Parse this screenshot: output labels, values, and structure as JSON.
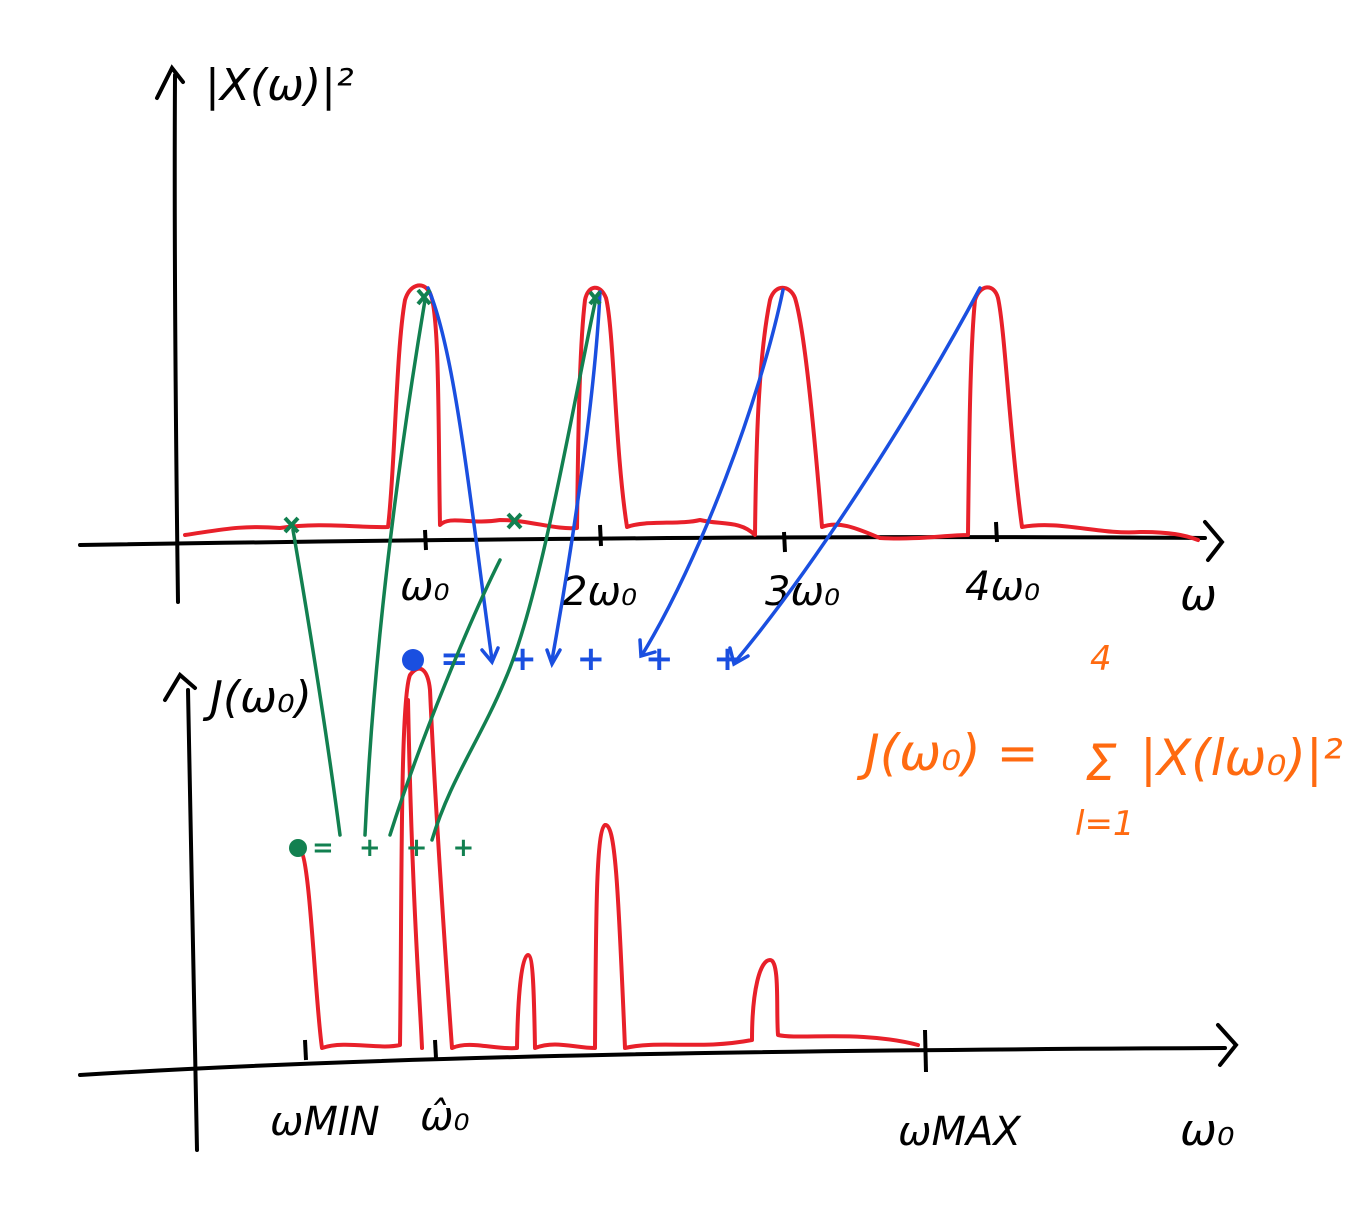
{
  "top_plot": {
    "y_label": "|X(ω)|²",
    "x_label": "ω",
    "ticks": [
      "ω₀",
      "2ω₀",
      "3ω₀",
      "4ω₀"
    ]
  },
  "bottom_plot": {
    "y_label": "J(ω₀)",
    "x_label": "ω₀",
    "ticks": [
      "ωMIN",
      "ω̂₀",
      "ωMAX"
    ]
  },
  "formula": {
    "lhs": "J(ω₀) = ",
    "sum_upper": "4",
    "sum_symbol": "Σ",
    "sum_lower": "l=1",
    "term": "|X(lω₀)|²"
  },
  "blue_sum": "= + + + +",
  "green_sum": "= + + +",
  "colors": {
    "axis": "#000000",
    "spectrum": "#e8202a",
    "mapping_blue": "#1a4fe0",
    "mapping_green": "#128050",
    "formula": "#ff6a10"
  }
}
